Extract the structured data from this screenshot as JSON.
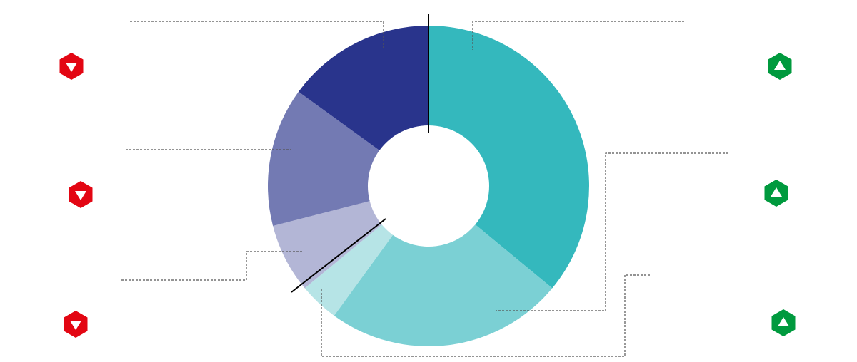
{
  "chart_data": {
    "type": "donut",
    "values": [
      36,
      24,
      4,
      7,
      14,
      15
    ],
    "colors": [
      "#34b8bd",
      "#7bd0d4",
      "#b6e4e6",
      "#b3b6d6",
      "#737ab3",
      "#29348c"
    ]
  }
}
